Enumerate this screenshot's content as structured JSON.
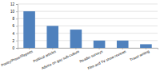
{
  "chart_data": {
    "type": "bar",
    "categories": [
      "Poetry/Prose/Reports",
      "Political articles",
      "Advice on gay sub-culture",
      "Reader surveys",
      "Film and TV show reviews",
      "Travel writing"
    ],
    "values": [
      10,
      6,
      5,
      2,
      2,
      1
    ],
    "color": "#4f81bd",
    "ylim": [
      0,
      12
    ],
    "yticks": [
      0,
      2,
      4,
      6,
      8,
      10,
      12
    ],
    "grid": true
  }
}
